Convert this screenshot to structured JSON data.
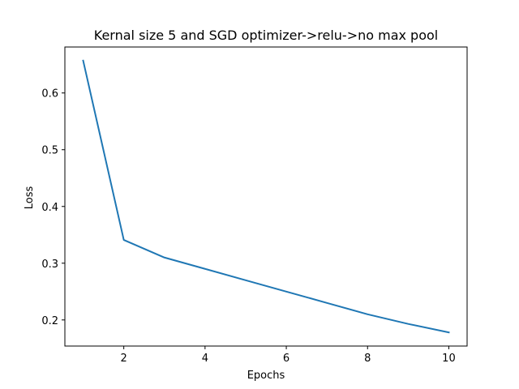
{
  "chart_data": {
    "type": "line",
    "title": "Kernal size 5 and SGD optimizer->relu->no max pool",
    "xlabel": "Epochs",
    "ylabel": "Loss",
    "xlim": [
      0.55,
      10.45
    ],
    "ylim": [
      0.154,
      0.681
    ],
    "xticks": [
      2,
      4,
      6,
      8,
      10
    ],
    "yticks": [
      0.2,
      0.3,
      0.4,
      0.5,
      0.6
    ],
    "xtick_labels": [
      "2",
      "4",
      "6",
      "8",
      "10"
    ],
    "ytick_labels": [
      "0.2",
      "0.3",
      "0.4",
      "0.5",
      "0.6"
    ],
    "grid": false,
    "legend": "none",
    "series": [
      {
        "color": "#1f77b4",
        "x": [
          1,
          2,
          3,
          4,
          5,
          6,
          7,
          8,
          9,
          10
        ],
        "y": [
          0.657,
          0.341,
          0.31,
          0.29,
          0.27,
          0.25,
          0.23,
          0.21,
          0.193,
          0.178
        ]
      }
    ]
  }
}
